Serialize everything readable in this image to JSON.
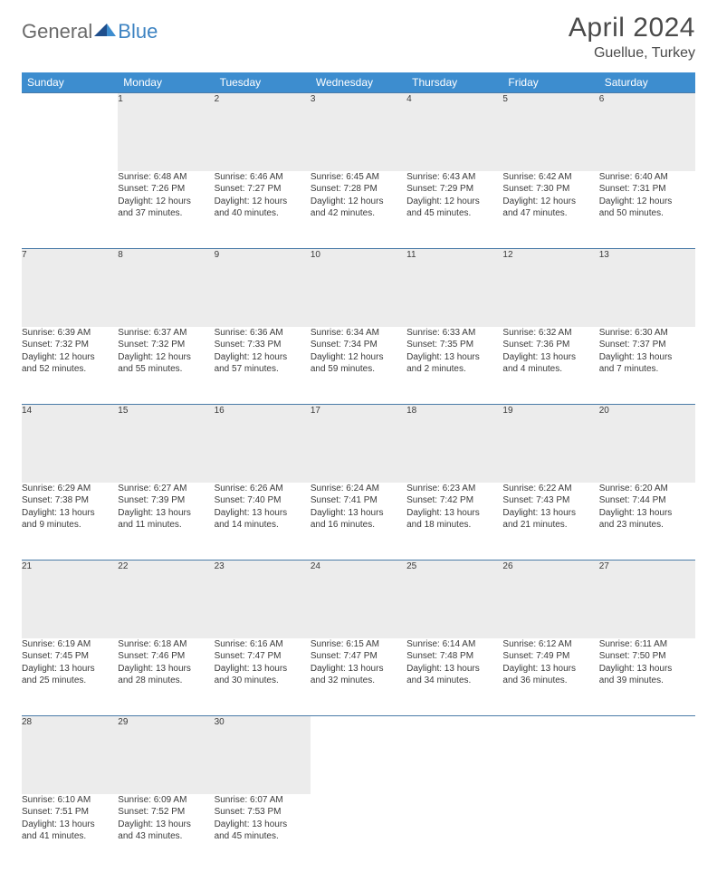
{
  "logo": {
    "gen": "General",
    "blue": "Blue"
  },
  "title": "April 2024",
  "location": "Guellue, Turkey",
  "colors": {
    "header_bg": "#3d8dcf",
    "header_text": "#ffffff",
    "daynum_bg": "#ececec",
    "daynum_text": "#606060",
    "row_border": "#4a7ba8",
    "body_text": "#3a3a3a",
    "title_text": "#4a4a4a",
    "logo_gray": "#6a6a6a",
    "logo_blue": "#3d83c2"
  },
  "day_headers": [
    "Sunday",
    "Monday",
    "Tuesday",
    "Wednesday",
    "Thursday",
    "Friday",
    "Saturday"
  ],
  "weeks": [
    [
      null,
      {
        "n": "1",
        "sr": "Sunrise: 6:48 AM",
        "ss": "Sunset: 7:26 PM",
        "d1": "Daylight: 12 hours",
        "d2": "and 37 minutes."
      },
      {
        "n": "2",
        "sr": "Sunrise: 6:46 AM",
        "ss": "Sunset: 7:27 PM",
        "d1": "Daylight: 12 hours",
        "d2": "and 40 minutes."
      },
      {
        "n": "3",
        "sr": "Sunrise: 6:45 AM",
        "ss": "Sunset: 7:28 PM",
        "d1": "Daylight: 12 hours",
        "d2": "and 42 minutes."
      },
      {
        "n": "4",
        "sr": "Sunrise: 6:43 AM",
        "ss": "Sunset: 7:29 PM",
        "d1": "Daylight: 12 hours",
        "d2": "and 45 minutes."
      },
      {
        "n": "5",
        "sr": "Sunrise: 6:42 AM",
        "ss": "Sunset: 7:30 PM",
        "d1": "Daylight: 12 hours",
        "d2": "and 47 minutes."
      },
      {
        "n": "6",
        "sr": "Sunrise: 6:40 AM",
        "ss": "Sunset: 7:31 PM",
        "d1": "Daylight: 12 hours",
        "d2": "and 50 minutes."
      }
    ],
    [
      {
        "n": "7",
        "sr": "Sunrise: 6:39 AM",
        "ss": "Sunset: 7:32 PM",
        "d1": "Daylight: 12 hours",
        "d2": "and 52 minutes."
      },
      {
        "n": "8",
        "sr": "Sunrise: 6:37 AM",
        "ss": "Sunset: 7:32 PM",
        "d1": "Daylight: 12 hours",
        "d2": "and 55 minutes."
      },
      {
        "n": "9",
        "sr": "Sunrise: 6:36 AM",
        "ss": "Sunset: 7:33 PM",
        "d1": "Daylight: 12 hours",
        "d2": "and 57 minutes."
      },
      {
        "n": "10",
        "sr": "Sunrise: 6:34 AM",
        "ss": "Sunset: 7:34 PM",
        "d1": "Daylight: 12 hours",
        "d2": "and 59 minutes."
      },
      {
        "n": "11",
        "sr": "Sunrise: 6:33 AM",
        "ss": "Sunset: 7:35 PM",
        "d1": "Daylight: 13 hours",
        "d2": "and 2 minutes."
      },
      {
        "n": "12",
        "sr": "Sunrise: 6:32 AM",
        "ss": "Sunset: 7:36 PM",
        "d1": "Daylight: 13 hours",
        "d2": "and 4 minutes."
      },
      {
        "n": "13",
        "sr": "Sunrise: 6:30 AM",
        "ss": "Sunset: 7:37 PM",
        "d1": "Daylight: 13 hours",
        "d2": "and 7 minutes."
      }
    ],
    [
      {
        "n": "14",
        "sr": "Sunrise: 6:29 AM",
        "ss": "Sunset: 7:38 PM",
        "d1": "Daylight: 13 hours",
        "d2": "and 9 minutes."
      },
      {
        "n": "15",
        "sr": "Sunrise: 6:27 AM",
        "ss": "Sunset: 7:39 PM",
        "d1": "Daylight: 13 hours",
        "d2": "and 11 minutes."
      },
      {
        "n": "16",
        "sr": "Sunrise: 6:26 AM",
        "ss": "Sunset: 7:40 PM",
        "d1": "Daylight: 13 hours",
        "d2": "and 14 minutes."
      },
      {
        "n": "17",
        "sr": "Sunrise: 6:24 AM",
        "ss": "Sunset: 7:41 PM",
        "d1": "Daylight: 13 hours",
        "d2": "and 16 minutes."
      },
      {
        "n": "18",
        "sr": "Sunrise: 6:23 AM",
        "ss": "Sunset: 7:42 PM",
        "d1": "Daylight: 13 hours",
        "d2": "and 18 minutes."
      },
      {
        "n": "19",
        "sr": "Sunrise: 6:22 AM",
        "ss": "Sunset: 7:43 PM",
        "d1": "Daylight: 13 hours",
        "d2": "and 21 minutes."
      },
      {
        "n": "20",
        "sr": "Sunrise: 6:20 AM",
        "ss": "Sunset: 7:44 PM",
        "d1": "Daylight: 13 hours",
        "d2": "and 23 minutes."
      }
    ],
    [
      {
        "n": "21",
        "sr": "Sunrise: 6:19 AM",
        "ss": "Sunset: 7:45 PM",
        "d1": "Daylight: 13 hours",
        "d2": "and 25 minutes."
      },
      {
        "n": "22",
        "sr": "Sunrise: 6:18 AM",
        "ss": "Sunset: 7:46 PM",
        "d1": "Daylight: 13 hours",
        "d2": "and 28 minutes."
      },
      {
        "n": "23",
        "sr": "Sunrise: 6:16 AM",
        "ss": "Sunset: 7:47 PM",
        "d1": "Daylight: 13 hours",
        "d2": "and 30 minutes."
      },
      {
        "n": "24",
        "sr": "Sunrise: 6:15 AM",
        "ss": "Sunset: 7:47 PM",
        "d1": "Daylight: 13 hours",
        "d2": "and 32 minutes."
      },
      {
        "n": "25",
        "sr": "Sunrise: 6:14 AM",
        "ss": "Sunset: 7:48 PM",
        "d1": "Daylight: 13 hours",
        "d2": "and 34 minutes."
      },
      {
        "n": "26",
        "sr": "Sunrise: 6:12 AM",
        "ss": "Sunset: 7:49 PM",
        "d1": "Daylight: 13 hours",
        "d2": "and 36 minutes."
      },
      {
        "n": "27",
        "sr": "Sunrise: 6:11 AM",
        "ss": "Sunset: 7:50 PM",
        "d1": "Daylight: 13 hours",
        "d2": "and 39 minutes."
      }
    ],
    [
      {
        "n": "28",
        "sr": "Sunrise: 6:10 AM",
        "ss": "Sunset: 7:51 PM",
        "d1": "Daylight: 13 hours",
        "d2": "and 41 minutes."
      },
      {
        "n": "29",
        "sr": "Sunrise: 6:09 AM",
        "ss": "Sunset: 7:52 PM",
        "d1": "Daylight: 13 hours",
        "d2": "and 43 minutes."
      },
      {
        "n": "30",
        "sr": "Sunrise: 6:07 AM",
        "ss": "Sunset: 7:53 PM",
        "d1": "Daylight: 13 hours",
        "d2": "and 45 minutes."
      },
      null,
      null,
      null,
      null
    ]
  ]
}
